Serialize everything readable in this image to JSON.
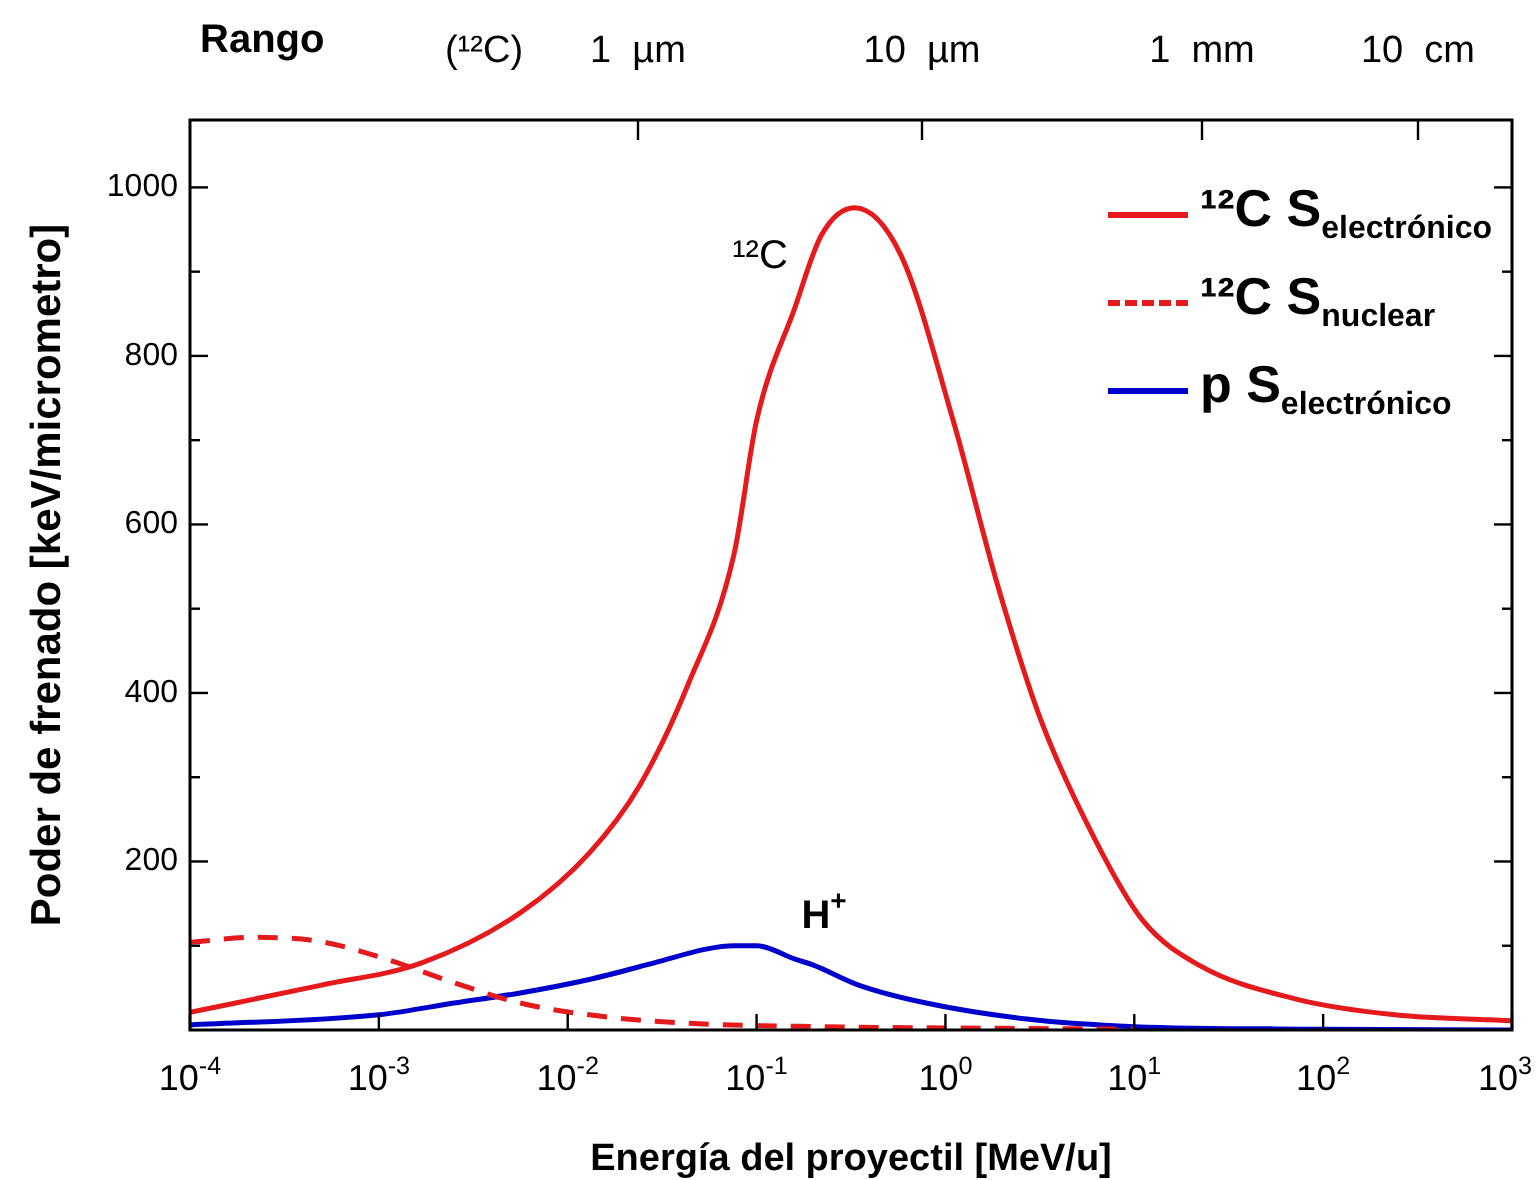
{
  "chart_data": {
    "type": "line",
    "xlabel": "Energía del proyectil [MeV/u]",
    "ylabel": "Poder de frenado [keV/micrometro]",
    "x2label": "Rango",
    "log": "x",
    "grid": false,
    "legend": "top right",
    "xlim": [
      0.0001,
      1000
    ],
    "xticks": [
      {
        "value": 0.0001,
        "label": "10$^{-4}$"
      },
      {
        "value": 0.001,
        "label": "10$^{-3}$"
      },
      {
        "value": 0.01,
        "label": "10$^{-2}$"
      },
      {
        "value": 0.1,
        "label": "10$^{-1}$"
      },
      {
        "value": 1,
        "label": "10$^{0}$"
      },
      {
        "value": 10,
        "label": "10$^{1}$"
      },
      {
        "value": 100,
        "label": "10$^{2}$"
      },
      {
        "value": 1000,
        "label": "10$^{3}$"
      }
    ],
    "ylim": [
      0,
      1080
    ],
    "yticks": [
      {
        "value": 100,
        "label": null
      },
      200,
      {
        "value": 300,
        "label": null
      },
      400,
      {
        "value": 500,
        "label": null
      },
      600,
      {
        "value": 700,
        "label": null
      },
      800,
      {
        "value": 900,
        "label": null
      },
      1000
    ],
    "series": [
      {
        "name": "¹²C  S$_{electrónico}$",
        "color": "#e41a1c",
        "line_style": "solid",
        "x": [
          0.0001,
          0.00049,
          0.0017,
          0.0056,
          0.013,
          0.024,
          0.043,
          0.076,
          0.1,
          0.16,
          0.22,
          0.33,
          0.58,
          1.1,
          1.9,
          3.2,
          6.2,
          11,
          22,
          71,
          240,
          1000
        ],
        "values": [
          21,
          53,
          80,
          139,
          210,
          290,
          408,
          565,
          723,
          858,
          943,
          976,
          920,
          723,
          526,
          368,
          226,
          131,
          77,
          37,
          18,
          11
        ]
      },
      {
        "name": "¹²C  S$_{nuclear}$",
        "color": "#e41a1c",
        "line_style": "dashed",
        "x": [
          0.0001,
          0.00022,
          0.00049,
          0.0011,
          0.0025,
          0.0056,
          0.013,
          0.043,
          0.22,
          2,
          10
        ],
        "values": [
          104,
          110,
          105,
          84,
          56,
          32,
          18,
          8,
          4,
          2,
          1
        ]
      },
      {
        "name": "p  S$_{electrónico}$",
        "color": "#0000cc",
        "line_style": "solid",
        "x": [
          0.0001,
          0.001,
          0.0025,
          0.0056,
          0.013,
          0.029,
          0.054,
          0.076,
          0.1,
          0.16,
          0.2,
          0.35,
          0.79,
          2.7,
          10,
          100,
          1000
        ],
        "values": [
          6,
          18,
          32,
          44,
          60,
          80,
          96,
          100,
          100,
          84,
          77,
          53,
          32,
          13,
          4,
          1,
          0
        ]
      }
    ],
    "annotations": [
      "¹²C",
      "H$^{+}$",
      "(¹²C)",
      "1  µm",
      "10  µm",
      "1  mm",
      "10  cm"
    ]
  }
}
